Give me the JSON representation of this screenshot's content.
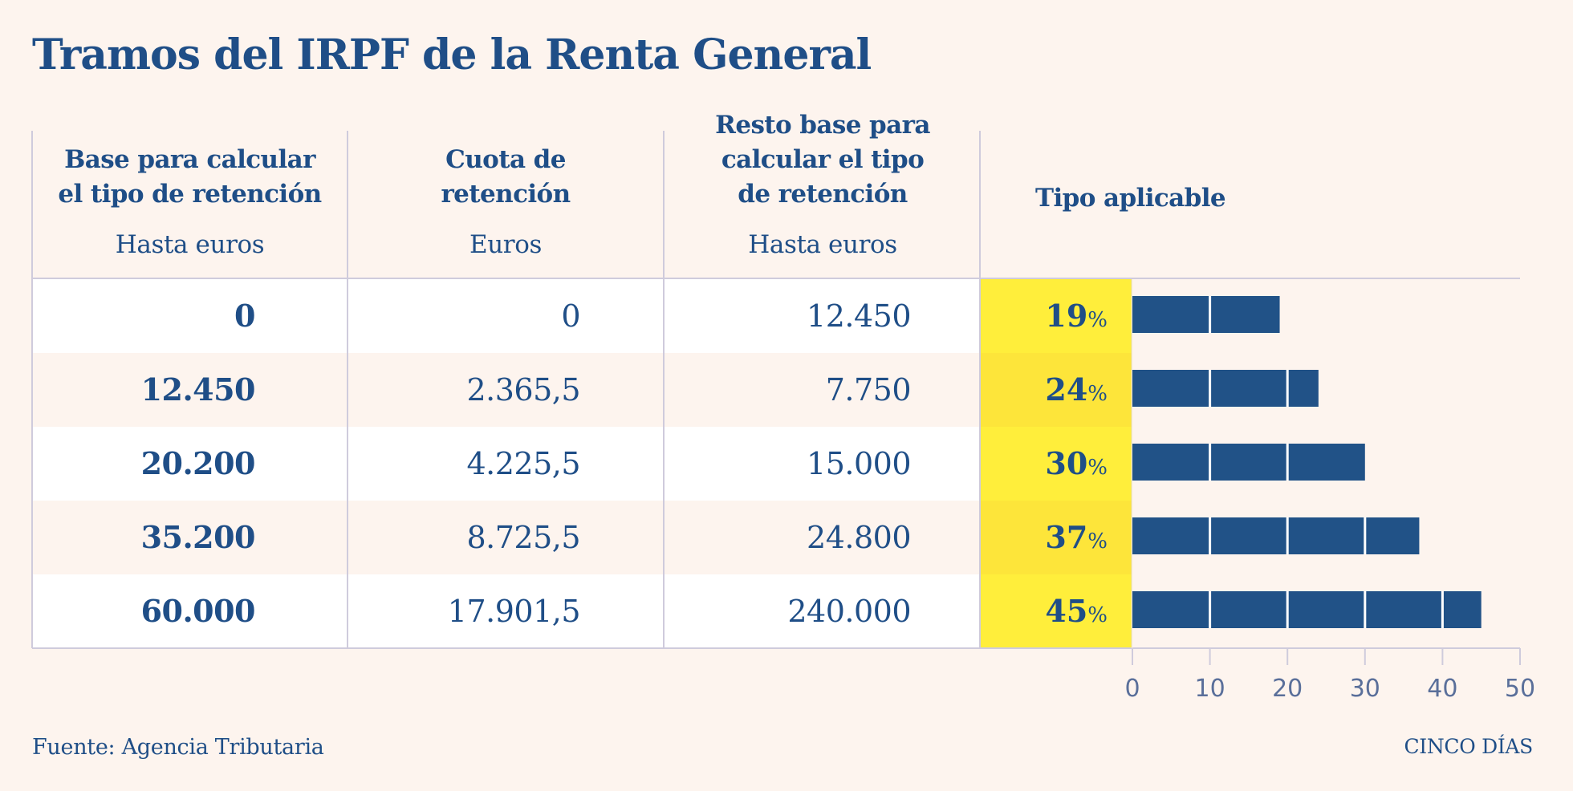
{
  "title": "Tramos del IRPF de la Renta General",
  "headers": [
    {
      "title": "Base para calcular el tipo de retención",
      "title_lines": [
        "Base para calcular",
        "el tipo de retención"
      ],
      "sub": "Hasta euros"
    },
    {
      "title": "Cuota de retención",
      "title_lines": [
        "Cuota de",
        "retención"
      ],
      "sub": "Euros"
    },
    {
      "title": "Resto base para calcular el tipo de retención",
      "title_lines": [
        "Resto base para",
        "calcular el tipo",
        "de retención"
      ],
      "sub": "Hasta euros"
    },
    {
      "title": "Tipo aplicable",
      "title_lines": [
        "Tipo aplicable"
      ],
      "sub": ""
    }
  ],
  "rows": [
    {
      "base": "0",
      "cuota": "0",
      "resto": "12.450",
      "tipo": "19",
      "tipo_sign": "%"
    },
    {
      "base": "12.450",
      "cuota": "2.365,5",
      "resto": "7.750",
      "tipo": "24",
      "tipo_sign": "%"
    },
    {
      "base": "20.200",
      "cuota": "4.225,5",
      "resto": "15.000",
      "tipo": "30",
      "tipo_sign": "%"
    },
    {
      "base": "35.200",
      "cuota": "8.725,5",
      "resto": "24.800",
      "tipo": "37",
      "tipo_sign": "%"
    },
    {
      "base": "60.000",
      "cuota": "17.901,5",
      "resto": "240.000",
      "tipo": "45",
      "tipo_sign": "%"
    }
  ],
  "footer": {
    "source": "Fuente: Agencia Tributaria",
    "brand": "CINCO DÍAS"
  },
  "colors": {
    "background": "#fdf4ee",
    "text": "#1f4e87",
    "bar": "#215287",
    "highlight_yellow": "#ffee3b",
    "gridline": "#cfcbdc"
  },
  "chart_data": {
    "type": "bar",
    "orientation": "horizontal",
    "title": "Tipo aplicable",
    "categories": [
      "0",
      "12.450",
      "20.200",
      "35.200",
      "60.000"
    ],
    "values": [
      19,
      24,
      30,
      37,
      45
    ],
    "unit": "%",
    "xlabel": "",
    "ylabel": "",
    "xlim": [
      0,
      50
    ],
    "xticks": [
      0,
      10,
      20,
      30,
      40,
      50
    ],
    "xtick_labels": [
      "0",
      "10",
      "20",
      "30",
      "40",
      "50"
    ],
    "segment_step": 10,
    "grid": false
  }
}
